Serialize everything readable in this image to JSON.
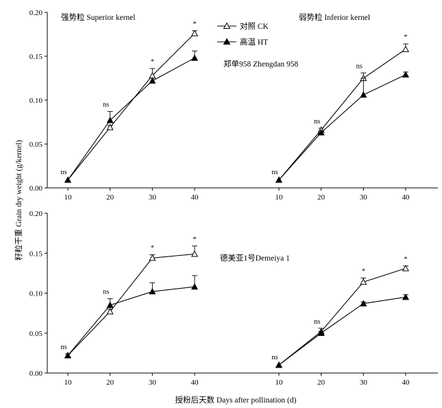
{
  "figure": {
    "y_axis_label": "籽粒干重 Grain dry weight (g/kernel)",
    "x_axis_label": "授粉后天数 Days after pollination (d)",
    "legend": {
      "ck_label": "对照 CK",
      "ht_label": "高温 HT",
      "placement": "top, between the upper panels"
    },
    "row_labels": {
      "top": "郑单958 Zhengdan 958",
      "bottom": "德美亚1号Demeiya 1"
    },
    "column_labels": {
      "left": "强势粒 Superior kernel",
      "right": "弱势粒  Inferior kernel"
    },
    "colors": {
      "line": "#000000",
      "ck_marker_fill": "#ffffff",
      "ht_marker_fill": "#000000"
    },
    "marker_shapes": {
      "ck": "open triangle",
      "ht": "filled triangle"
    }
  },
  "chart_data": [
    {
      "type": "line",
      "variety": "郑单958 Zhengdan 958",
      "kernel": "强势粒 Superior kernel",
      "x": [
        10,
        20,
        30,
        40
      ],
      "xticks": [
        "10",
        "20",
        "30",
        "40"
      ],
      "ylim": [
        0,
        0.2
      ],
      "yticks": [
        "0.00",
        "0.05",
        "0.10",
        "0.15",
        "0.20"
      ],
      "series": [
        {
          "name": "对照 CK",
          "values": [
            0.009,
            0.069,
            0.128,
            0.176
          ],
          "errors": [
            0.001,
            0.002,
            0.008,
            0.003
          ]
        },
        {
          "name": "高温 HT",
          "values": [
            0.009,
            0.077,
            0.122,
            0.148
          ],
          "errors": [
            0.001,
            0.01,
            0.003,
            0.008
          ]
        }
      ],
      "significance": [
        "ns",
        "ns",
        "*",
        "*"
      ]
    },
    {
      "type": "line",
      "variety": "郑单958 Zhengdan 958",
      "kernel": "弱势粒  Inferior kernel",
      "x": [
        10,
        20,
        30,
        40
      ],
      "xticks": [
        "10",
        "20",
        "30",
        "40"
      ],
      "ylim": [
        0,
        0.2
      ],
      "yticks": [],
      "series": [
        {
          "name": "对照 CK",
          "values": [
            0.009,
            0.066,
            0.125,
            0.158
          ],
          "errors": [
            0.001,
            0.002,
            0.006,
            0.006
          ]
        },
        {
          "name": "高温 HT",
          "values": [
            0.009,
            0.063,
            0.106,
            0.129
          ],
          "errors": [
            0.001,
            0.002,
            0.019,
            0.003
          ]
        }
      ],
      "significance": [
        "ns",
        "ns",
        "ns",
        "*"
      ]
    },
    {
      "type": "line",
      "variety": "德美亚1号Demeiya 1",
      "kernel": "强势粒 Superior kernel",
      "x": [
        10,
        20,
        30,
        40
      ],
      "xticks": [
        "10",
        "20",
        "30",
        "40"
      ],
      "ylim": [
        0,
        0.2
      ],
      "yticks": [
        "0.00",
        "0.05",
        "0.10",
        "0.15",
        "0.20"
      ],
      "series": [
        {
          "name": "对照 CK",
          "values": [
            0.022,
            0.077,
            0.144,
            0.149
          ],
          "errors": [
            0.002,
            0.003,
            0.004,
            0.01
          ]
        },
        {
          "name": "高温 HT",
          "values": [
            0.022,
            0.085,
            0.102,
            0.108
          ],
          "errors": [
            0.002,
            0.008,
            0.011,
            0.014
          ]
        }
      ],
      "significance": [
        "ns",
        "ns",
        "*",
        "*"
      ]
    },
    {
      "type": "line",
      "variety": "德美亚1号Demeiya 1",
      "kernel": "弱势粒  Inferior kernel",
      "x": [
        10,
        20,
        30,
        40
      ],
      "xticks": [
        "10",
        "20",
        "30",
        "40"
      ],
      "ylim": [
        0,
        0.2
      ],
      "yticks": [],
      "series": [
        {
          "name": "对照 CK",
          "values": [
            0.01,
            0.052,
            0.114,
            0.131
          ],
          "errors": [
            0.001,
            0.004,
            0.005,
            0.003
          ]
        },
        {
          "name": "高温 HT",
          "values": [
            0.01,
            0.05,
            0.087,
            0.095
          ],
          "errors": [
            0.001,
            0.002,
            0.002,
            0.003
          ]
        }
      ],
      "significance": [
        "ns",
        "ns",
        "*",
        "*"
      ]
    }
  ]
}
